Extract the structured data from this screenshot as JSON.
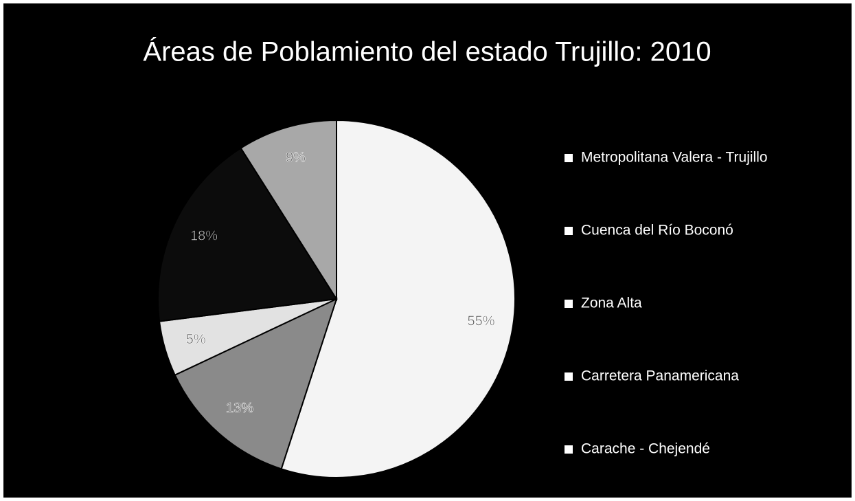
{
  "chart_data": {
    "type": "pie",
    "title": "Áreas de Poblamiento del estado Trujillo: 2010",
    "categories": [
      "Metropolitana Valera - Trujillo",
      "Cuenca del Río Boconó",
      "Zona Alta",
      "Carretera Panamericana",
      "Carache - Chejendé"
    ],
    "values": [
      55,
      13,
      5,
      18,
      9
    ],
    "value_labels": [
      "55%",
      "13%",
      "5%",
      "18%",
      "9%"
    ],
    "colors": [
      "#f4f4f4",
      "#8a8a8a",
      "#e2e2e2",
      "#0c0c0c",
      "#a8a8a8"
    ],
    "legend": "right"
  }
}
